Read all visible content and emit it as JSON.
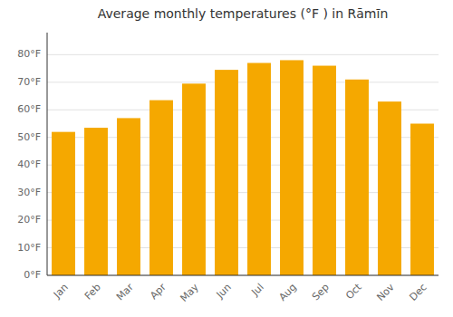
{
  "chart_data": {
    "type": "bar",
    "title": "Average monthly temperatures (°F ) in Rāmīn",
    "categories": [
      "Jan",
      "Feb",
      "Mar",
      "Apr",
      "May",
      "Jun",
      "Jul",
      "Aug",
      "Sep",
      "Oct",
      "Nov",
      "Dec"
    ],
    "values": [
      52,
      53.5,
      57,
      63.5,
      69.5,
      74.5,
      77,
      78,
      76,
      71,
      63,
      55
    ],
    "color": "#F5A800",
    "ylim": [
      0,
      88
    ],
    "yticks": [
      {
        "value": 0,
        "label": "0°F"
      },
      {
        "value": 10,
        "label": "10°F"
      },
      {
        "value": 20,
        "label": "20°F"
      },
      {
        "value": 30,
        "label": "30°F"
      },
      {
        "value": 40,
        "label": "40°F"
      },
      {
        "value": 50,
        "label": "50°F"
      },
      {
        "value": 60,
        "label": "60°F"
      },
      {
        "value": 70,
        "label": "70°F"
      },
      {
        "value": 80,
        "label": "80°F"
      }
    ],
    "grid": true
  }
}
